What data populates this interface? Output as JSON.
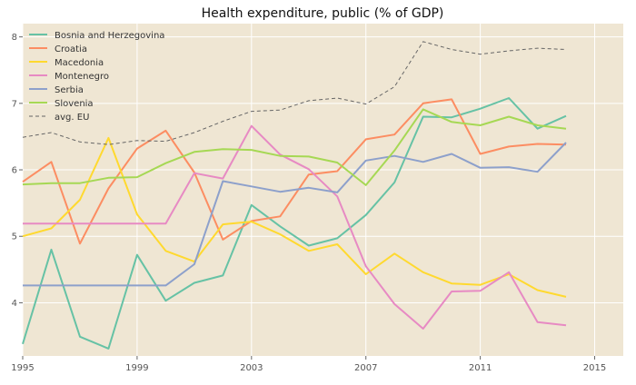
{
  "chart_data": {
    "type": "line",
    "title": "Health expenditure, public (% of GDP)",
    "xlabel": "",
    "ylabel": "",
    "xlim": [
      1995,
      2016
    ],
    "ylim": [
      3.2,
      8.2
    ],
    "xticks": [
      1995,
      1999,
      2003,
      2007,
      2011,
      2015
    ],
    "yticks": [
      4,
      5,
      6,
      7,
      8
    ],
    "grid": true,
    "legend_position": "top-left",
    "colors": {
      "background": "#efe6d3",
      "grid": "#ffffff",
      "text": "#333333",
      "tick_label": "#555555"
    },
    "x": [
      1995,
      1996,
      1997,
      1998,
      1999,
      2000,
      2001,
      2002,
      2003,
      2004,
      2005,
      2006,
      2007,
      2008,
      2009,
      2010,
      2011,
      2012,
      2013,
      2014
    ],
    "series": [
      {
        "name": "Bosnia and Herzegovina",
        "color": "#66c2a5",
        "dash": "",
        "values": [
          3.38,
          4.8,
          3.49,
          3.31,
          4.72,
          4.03,
          4.3,
          4.41,
          5.47,
          5.15,
          4.86,
          4.97,
          5.32,
          5.81,
          6.8,
          6.79,
          6.92,
          7.08,
          6.62,
          6.81
        ]
      },
      {
        "name": "Croatia",
        "color": "#fc8d62",
        "dash": "",
        "values": [
          5.82,
          6.12,
          4.89,
          5.72,
          6.32,
          6.59,
          5.96,
          4.95,
          5.23,
          5.3,
          5.93,
          5.98,
          6.46,
          6.53,
          7.0,
          7.06,
          6.24,
          6.35,
          6.39,
          6.38
        ]
      },
      {
        "name": "Macedonia",
        "color": "#ffd92f",
        "dash": "",
        "values": [
          5.0,
          5.12,
          5.55,
          6.48,
          5.33,
          4.78,
          4.62,
          5.18,
          5.22,
          5.03,
          4.78,
          4.88,
          4.43,
          4.74,
          4.46,
          4.29,
          4.27,
          4.43,
          4.19,
          4.09
        ]
      },
      {
        "name": "Montenegro",
        "color": "#e78ac3",
        "dash": "",
        "values": [
          5.19,
          5.19,
          5.19,
          5.19,
          5.19,
          5.19,
          5.95,
          5.87,
          6.66,
          6.23,
          6.01,
          5.6,
          4.55,
          3.98,
          3.61,
          4.17,
          4.18,
          4.46,
          3.71,
          3.66
        ]
      },
      {
        "name": "Serbia",
        "color": "#8da0cb",
        "dash": "",
        "values": [
          4.26,
          4.26,
          4.26,
          4.26,
          4.26,
          4.26,
          4.58,
          5.83,
          5.75,
          5.67,
          5.73,
          5.66,
          6.14,
          6.21,
          6.12,
          6.24,
          6.03,
          6.04,
          5.97,
          6.41
        ]
      },
      {
        "name": "Slovenia",
        "color": "#a6d854",
        "dash": "",
        "values": [
          5.78,
          5.8,
          5.8,
          5.88,
          5.89,
          6.1,
          6.27,
          6.31,
          6.3,
          6.21,
          6.2,
          6.11,
          5.77,
          6.29,
          6.91,
          6.72,
          6.67,
          6.8,
          6.67,
          6.62
        ]
      },
      {
        "name": "avg. EU",
        "color": "#666666",
        "dash": "4,3",
        "values": [
          6.49,
          6.56,
          6.42,
          6.38,
          6.44,
          6.43,
          6.56,
          6.73,
          6.88,
          6.9,
          7.04,
          7.08,
          6.99,
          7.25,
          7.93,
          7.81,
          7.74,
          7.79,
          7.83,
          7.81
        ]
      }
    ]
  }
}
